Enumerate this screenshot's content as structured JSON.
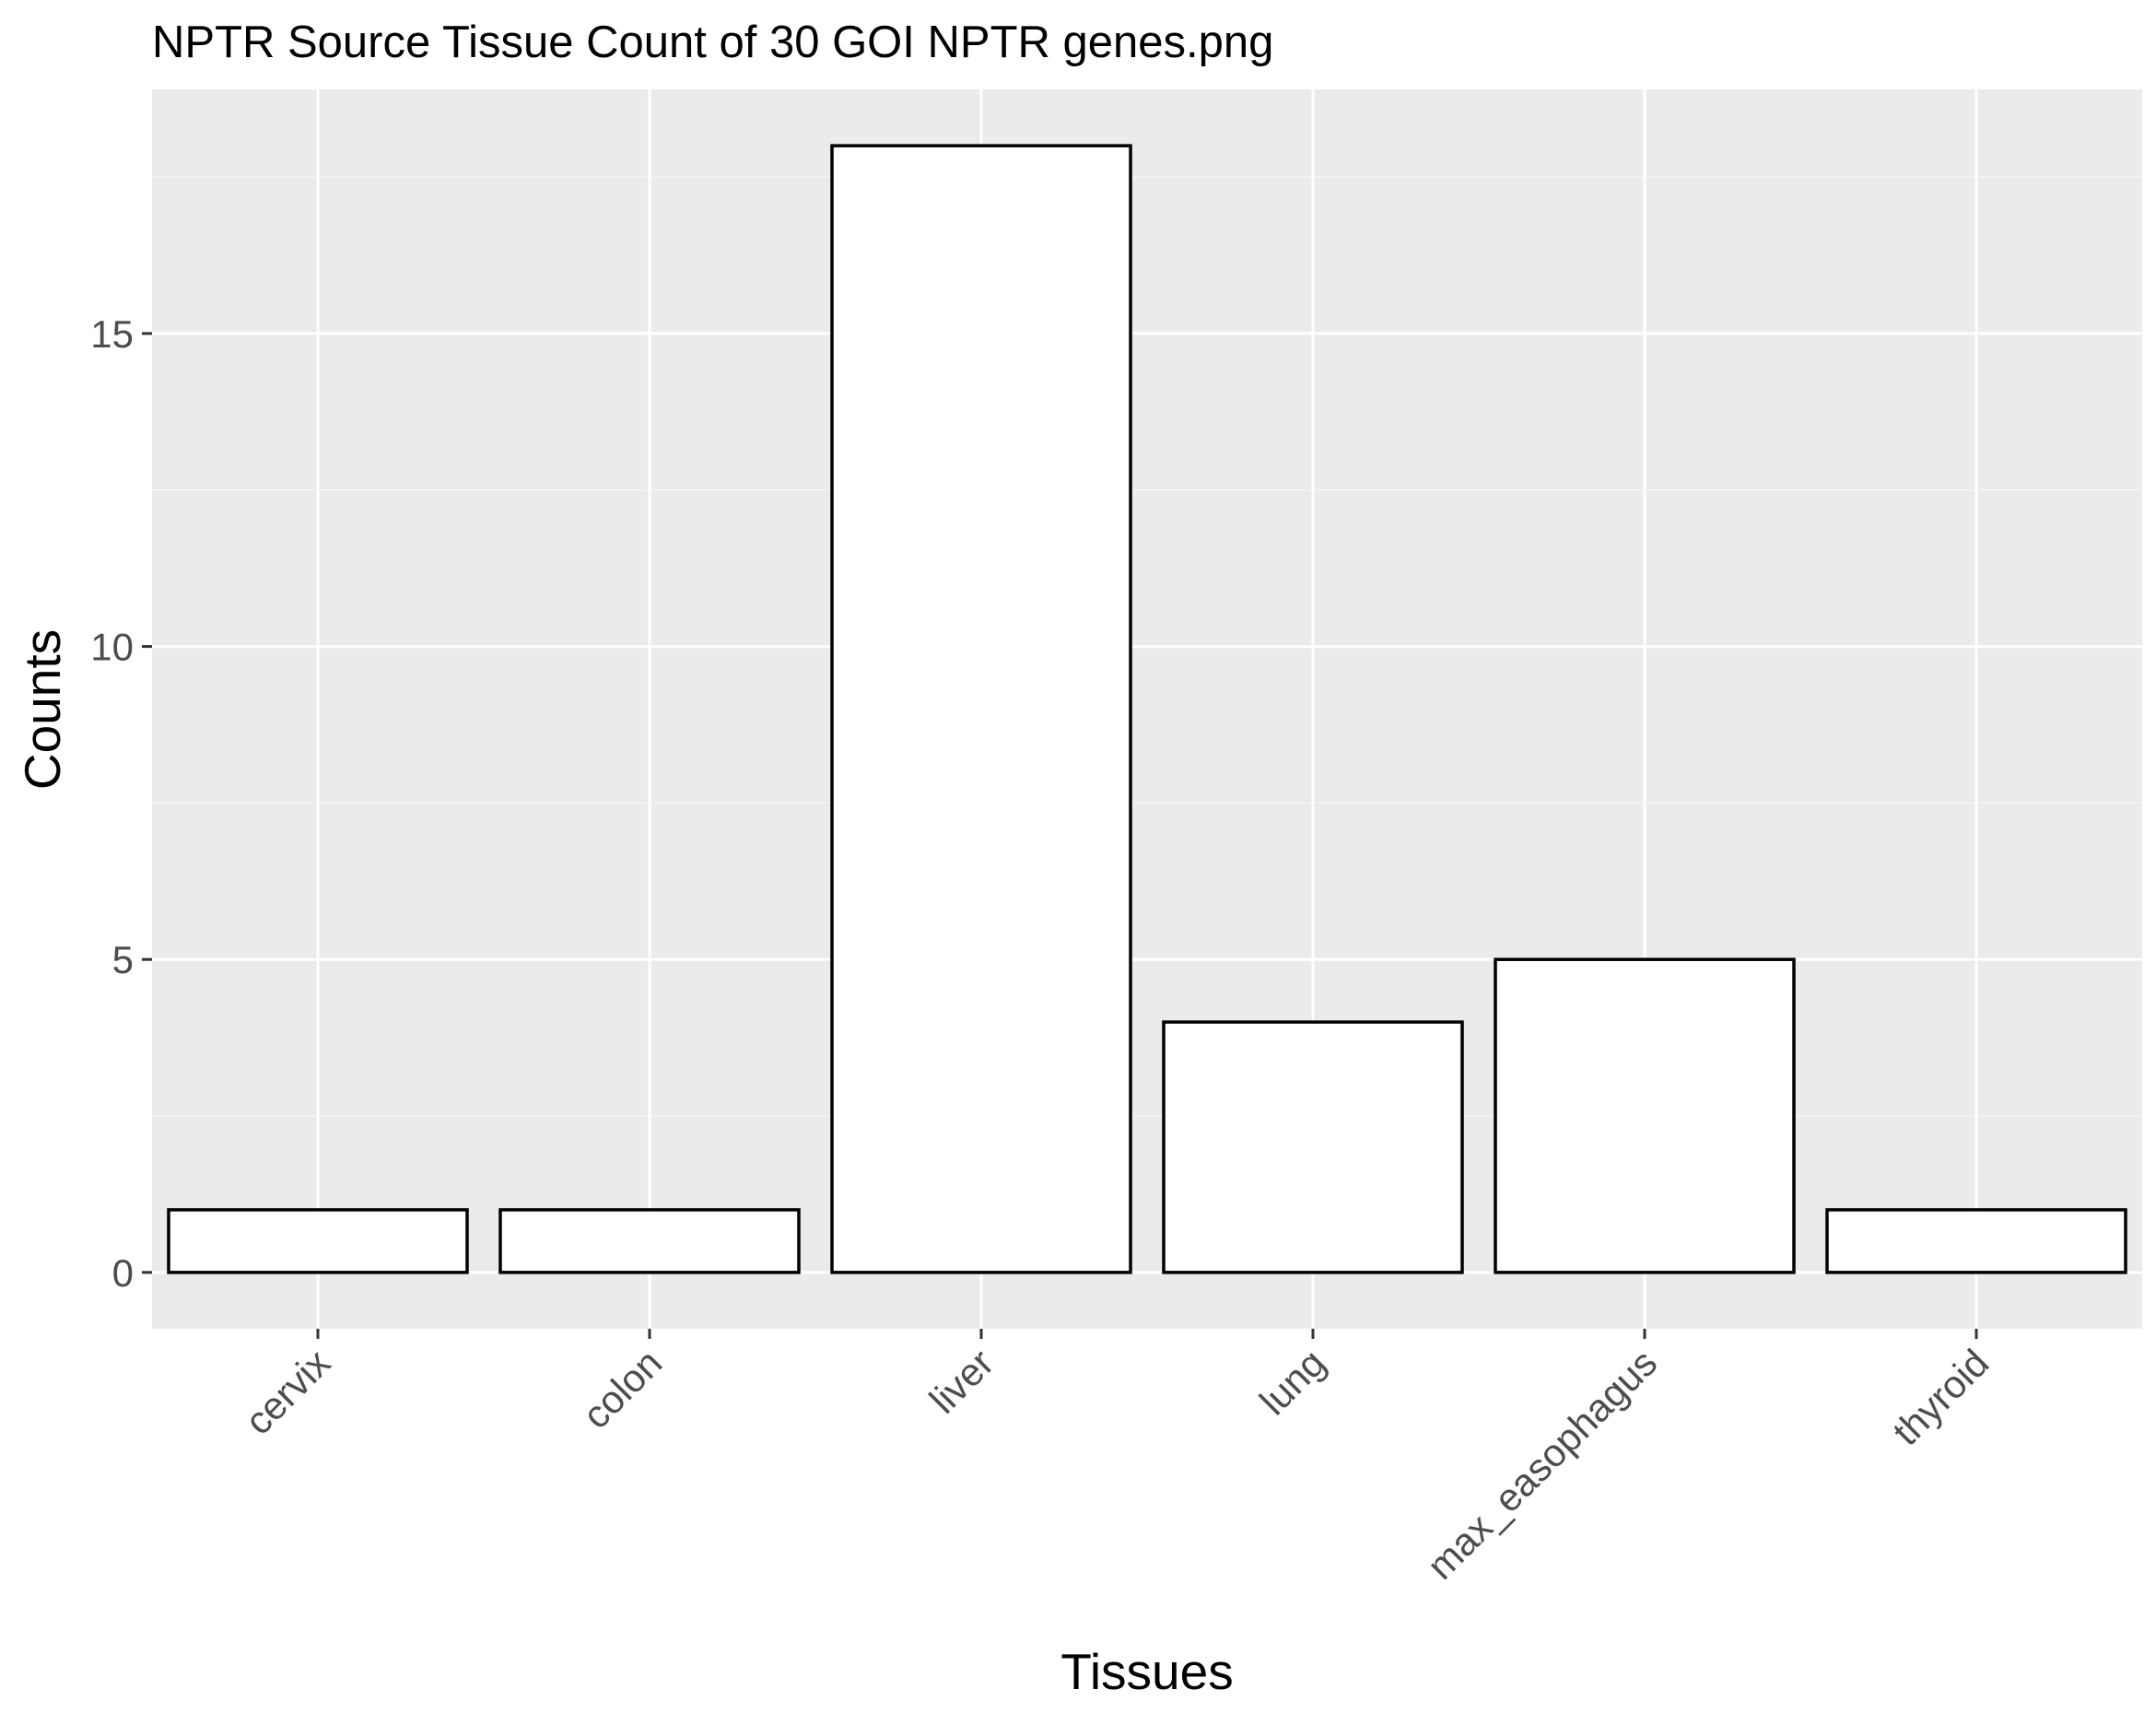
{
  "chart_data": {
    "type": "bar",
    "title": "NPTR Source Tissue Count of 30 GOI NPTR genes.png",
    "xlabel": "Tissues",
    "ylabel": "Counts",
    "categories": [
      "cervix",
      "colon",
      "liver",
      "lung",
      "max_easophagus",
      "thyroid"
    ],
    "values": [
      1,
      1,
      18,
      4,
      5,
      1
    ],
    "ylim": [
      -0.9,
      18.9
    ],
    "yticks": [
      0,
      5,
      10,
      15
    ],
    "ytick_labels": [
      "0",
      "5",
      "10",
      "15"
    ],
    "grid": true,
    "legend": "none",
    "x_tick_rotation_deg": 45
  },
  "colors": {
    "panel_background": "#ebebeb",
    "grid_major": "#ffffff",
    "grid_minor": "#f5f5f5",
    "bar_fill": "#ffffff",
    "bar_outline": "#000000",
    "tick_text": "#4d4d4d",
    "tick_mark": "#333333",
    "title_text": "#000000"
  }
}
